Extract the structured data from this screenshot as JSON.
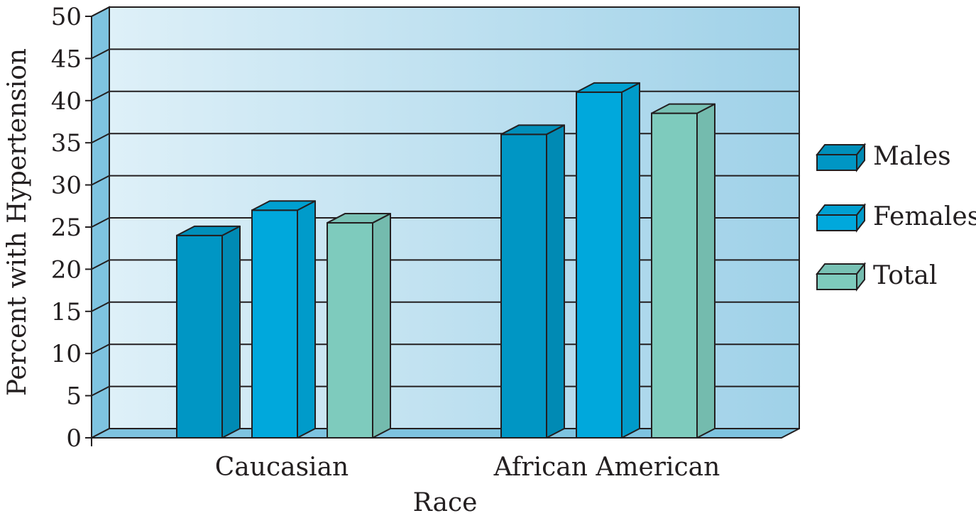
{
  "chart_data": {
    "type": "bar",
    "title": "",
    "xlabel": "Race",
    "ylabel": "Percent with Hypertension",
    "categories": [
      "Caucasian",
      "African American"
    ],
    "series": [
      {
        "name": "Males",
        "values": [
          24,
          36
        ],
        "color": "#0096c4"
      },
      {
        "name": "Females",
        "values": [
          27,
          41
        ],
        "color": "#00a8dc"
      },
      {
        "name": "Total",
        "values": [
          25.5,
          38.5
        ],
        "color": "#7ecbbd"
      }
    ],
    "ylim": [
      0,
      50
    ],
    "yticks": [
      "0",
      "5",
      "10",
      "15",
      "20",
      "25",
      "30",
      "35",
      "40",
      "45",
      "50"
    ],
    "grid": true,
    "legend": "right",
    "style": "3d"
  }
}
